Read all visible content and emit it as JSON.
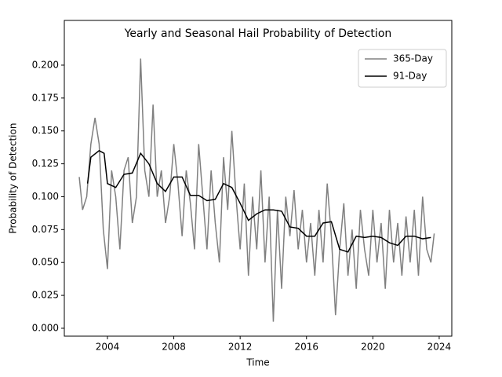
{
  "chart_data": {
    "type": "line",
    "title": "Yearly and Seasonal Hail Probability of Detection",
    "x_label": "Time",
    "y_label": "Probability of Detection",
    "xlim": [
      2001.4,
      2024.76
    ],
    "ylim": [
      -0.006,
      0.234
    ],
    "xticks": [
      2004,
      2008,
      2012,
      2016,
      2020,
      2024
    ],
    "yticks": [
      {
        "value": 0,
        "label": "0.000"
      },
      {
        "value": 0.025,
        "label": "0.025"
      },
      {
        "value": 0.05,
        "label": "0.050"
      },
      {
        "value": 0.075,
        "label": "0.075"
      },
      {
        "value": 0.1,
        "label": "0.100"
      },
      {
        "value": 0.125,
        "label": "0.125"
      },
      {
        "value": 0.15,
        "label": "0.150"
      },
      {
        "value": 0.175,
        "label": "0.175"
      },
      {
        "value": 0.2,
        "label": "0.200"
      }
    ],
    "legend": "upper right",
    "series": [
      {
        "name": "365-Day",
        "color": "#808080",
        "x": [
          2002.3,
          2002.5,
          2002.75,
          2003.0,
          2003.25,
          2003.5,
          2003.75,
          2004.0,
          2004.25,
          2004.5,
          2004.75,
          2005.0,
          2005.25,
          2005.5,
          2005.75,
          2006.0,
          2006.25,
          2006.5,
          2006.75,
          2007.0,
          2007.25,
          2007.5,
          2007.75,
          2008.0,
          2008.25,
          2008.5,
          2008.75,
          2009.0,
          2009.25,
          2009.5,
          2009.75,
          2010.0,
          2010.25,
          2010.5,
          2010.75,
          2011.0,
          2011.25,
          2011.5,
          2011.75,
          2012.0,
          2012.25,
          2012.5,
          2012.75,
          2013.0,
          2013.25,
          2013.5,
          2013.75,
          2014.0,
          2014.25,
          2014.5,
          2014.75,
          2015.0,
          2015.25,
          2015.5,
          2015.75,
          2016.0,
          2016.25,
          2016.5,
          2016.75,
          2017.0,
          2017.25,
          2017.5,
          2017.75,
          2018.0,
          2018.25,
          2018.5,
          2018.75,
          2019.0,
          2019.25,
          2019.5,
          2019.75,
          2020.0,
          2020.25,
          2020.5,
          2020.75,
          2021.0,
          2021.25,
          2021.5,
          2021.75,
          2022.0,
          2022.25,
          2022.5,
          2022.75,
          2023.0,
          2023.25,
          2023.5,
          2023.7
        ],
        "values": [
          0.115,
          0.09,
          0.1,
          0.14,
          0.16,
          0.14,
          0.075,
          0.045,
          0.12,
          0.1,
          0.06,
          0.12,
          0.13,
          0.08,
          0.1,
          0.205,
          0.12,
          0.1,
          0.17,
          0.1,
          0.12,
          0.08,
          0.1,
          0.14,
          0.11,
          0.07,
          0.12,
          0.095,
          0.06,
          0.14,
          0.1,
          0.06,
          0.12,
          0.08,
          0.05,
          0.13,
          0.09,
          0.15,
          0.1,
          0.06,
          0.11,
          0.04,
          0.1,
          0.06,
          0.12,
          0.05,
          0.1,
          0.005,
          0.09,
          0.03,
          0.1,
          0.07,
          0.105,
          0.06,
          0.09,
          0.05,
          0.08,
          0.04,
          0.09,
          0.05,
          0.11,
          0.07,
          0.01,
          0.06,
          0.095,
          0.04,
          0.075,
          0.03,
          0.09,
          0.06,
          0.04,
          0.09,
          0.05,
          0.08,
          0.03,
          0.09,
          0.05,
          0.08,
          0.04,
          0.085,
          0.05,
          0.09,
          0.04,
          0.1,
          0.06,
          0.05,
          0.072
        ]
      },
      {
        "name": "91-Day",
        "color": "#000000",
        "x": [
          2002.8,
          2003.0,
          2003.5,
          2003.8,
          2004.0,
          2004.5,
          2005.0,
          2005.5,
          2006.0,
          2006.5,
          2007.0,
          2007.5,
          2008.0,
          2008.5,
          2009.0,
          2009.5,
          2010.0,
          2010.5,
          2011.0,
          2011.5,
          2012.0,
          2012.5,
          2013.0,
          2013.5,
          2014.0,
          2014.5,
          2015.0,
          2015.5,
          2016.0,
          2016.5,
          2017.0,
          2017.5,
          2018.0,
          2018.5,
          2019.0,
          2019.5,
          2020.0,
          2020.5,
          2021.0,
          2021.5,
          2022.0,
          2022.5,
          2023.0,
          2023.5
        ],
        "values": [
          0.11,
          0.13,
          0.135,
          0.133,
          0.11,
          0.107,
          0.117,
          0.118,
          0.133,
          0.125,
          0.11,
          0.104,
          0.115,
          0.115,
          0.101,
          0.101,
          0.097,
          0.098,
          0.11,
          0.107,
          0.095,
          0.082,
          0.087,
          0.09,
          0.09,
          0.089,
          0.077,
          0.076,
          0.07,
          0.07,
          0.08,
          0.081,
          0.06,
          0.058,
          0.07,
          0.069,
          0.07,
          0.069,
          0.065,
          0.063,
          0.07,
          0.07,
          0.068,
          0.069
        ]
      }
    ]
  }
}
